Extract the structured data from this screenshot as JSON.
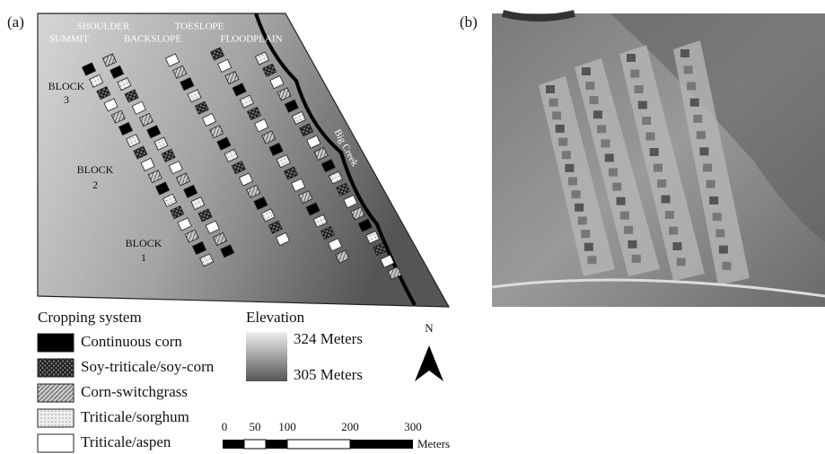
{
  "panel_labels": [
    "(a)",
    "(b)"
  ],
  "map": {
    "landscape_positions": [
      "SHOULDER",
      "SUMMIT",
      "BACKSLOPE",
      "TOESLOPE",
      "FLOODPLAIN"
    ],
    "blocks": [
      {
        "label": "BLOCK",
        "number": "3"
      },
      {
        "label": "BLOCK",
        "number": "2"
      },
      {
        "label": "BLOCK",
        "number": "1"
      }
    ],
    "stream": "Big Creek"
  },
  "legend": {
    "cropping": {
      "title": "Cropping system",
      "items": [
        "Continuous corn",
        "Soy-triticale/soy-corn",
        "Corn-switchgrass",
        "Triticale/sorghum",
        "Triticale/aspen"
      ]
    },
    "elevation": {
      "title": "Elevation",
      "high": "324 Meters",
      "low": "305 Meters"
    }
  },
  "north": "N",
  "scale_bar": {
    "labels": [
      "0",
      "50",
      "100",
      "200",
      "300"
    ],
    "unit": "Meters"
  }
}
